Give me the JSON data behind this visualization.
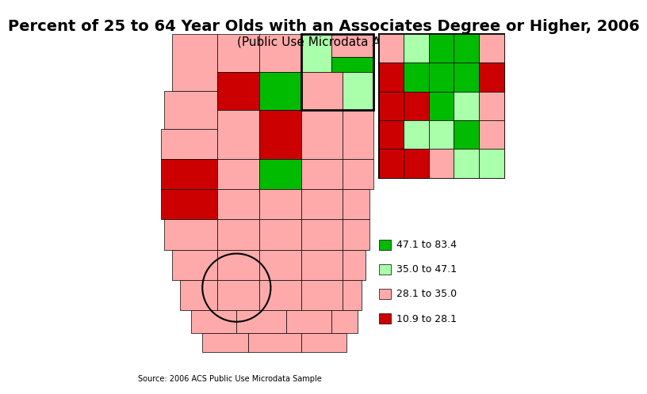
{
  "title": "Percent of 25 to 64 Year Olds with an Associates Degree or Higher, 2006",
  "subtitle": "(Public Use Microdata Areas)",
  "source": "Source: 2006 ACS Public Use Microdata Sample",
  "legend": [
    {
      "label": "47.1 to 83.4",
      "color": "#00BB00"
    },
    {
      "label": "35.0 to 47.1",
      "color": "#AAFFAA"
    },
    {
      "label": "28.1 to 35.0",
      "color": "#FFAAAA"
    },
    {
      "label": "10.9 to 28.1",
      "color": "#CC0000"
    }
  ],
  "title_fontsize": 14,
  "subtitle_fontsize": 11,
  "source_fontsize": 7,
  "legend_fontsize": 9,
  "bg_color": "#FFFFFF"
}
